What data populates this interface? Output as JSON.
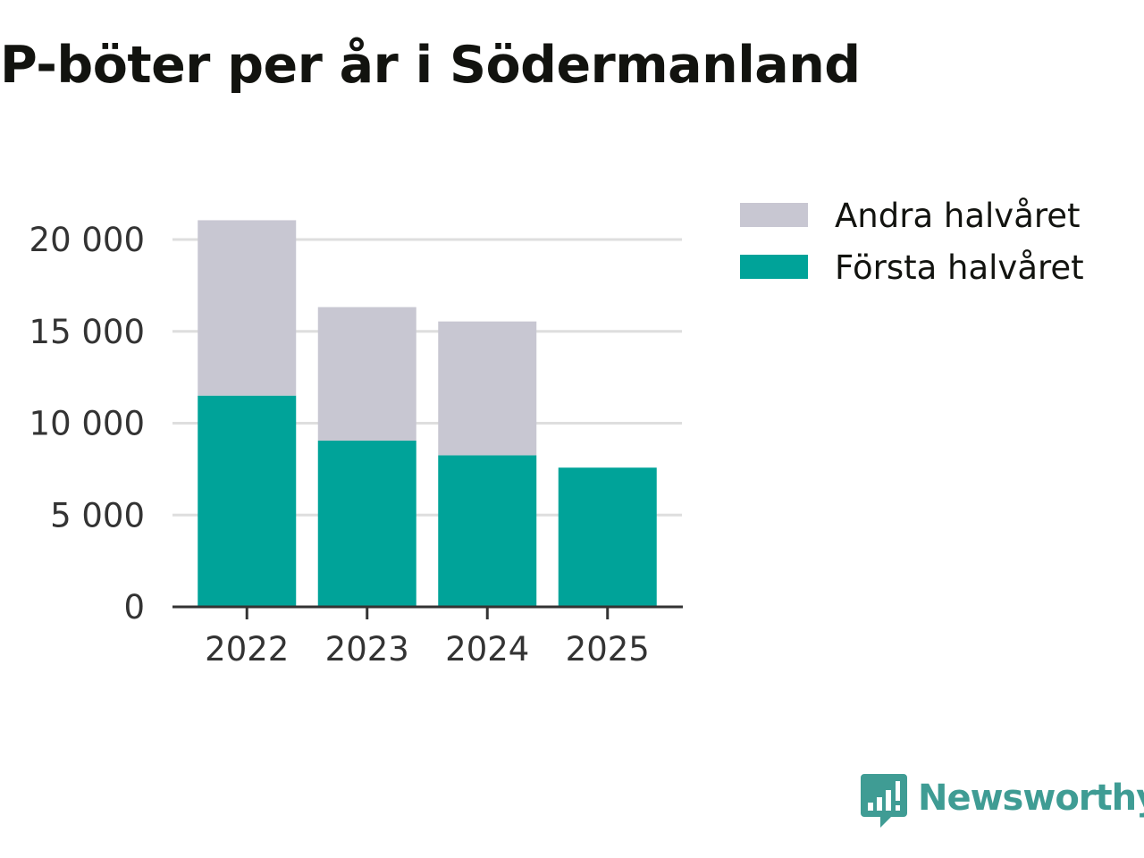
{
  "chart_data": {
    "type": "bar",
    "stacked": true,
    "title": "P-böter per år i Södermanland",
    "xlabel": "",
    "ylabel": "",
    "categories": [
      "2022",
      "2023",
      "2024",
      "2025"
    ],
    "series": [
      {
        "name": "Första halvåret",
        "color": "#00a399",
        "values": [
          11500,
          9050,
          8250,
          7580
        ]
      },
      {
        "name": "Andra halvåret",
        "color": "#c8c7d2",
        "values": [
          9550,
          7270,
          7290,
          0
        ]
      }
    ],
    "ylim": [
      0,
      20000
    ],
    "yticks": [
      {
        "value": 0,
        "label": "0"
      },
      {
        "value": 5000,
        "label": "5 000"
      },
      {
        "value": 10000,
        "label": "10 000"
      },
      {
        "value": 15000,
        "label": "15 000"
      },
      {
        "value": 20000,
        "label": "20 000"
      }
    ],
    "grid": true,
    "legend": {
      "placement": "top-right",
      "entries": [
        {
          "label": "Andra halvåret",
          "color": "#c8c7d2"
        },
        {
          "label": "Första halvåret",
          "color": "#00a399"
        }
      ]
    }
  },
  "brand": {
    "name": "Newsworthy",
    "icon": "newsworthy-logo-icon",
    "color": "#3f9c94"
  }
}
